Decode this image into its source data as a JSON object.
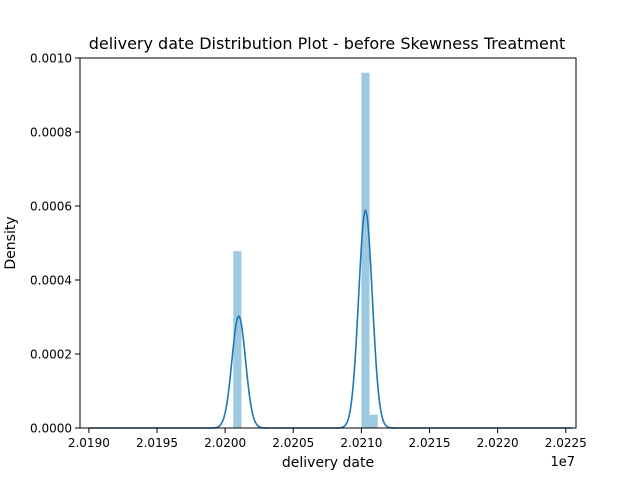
{
  "chart_data": {
    "type": "bar",
    "title": "delivery date Distribution Plot - before Skewness Treatment",
    "xlabel": "delivery date",
    "ylabel": "Density",
    "x_offset_label": "1e7",
    "xlim": [
      20189350.0,
      20225750.0
    ],
    "ylim": [
      0,
      0.001
    ],
    "x_ticks": [
      20190000.0,
      20195000.0,
      20200000.0,
      20205000.0,
      20210000.0,
      20215000.0,
      20220000.0,
      20225000.0
    ],
    "x_tick_labels": [
      "2.0190",
      "2.0195",
      "2.0200",
      "2.0205",
      "2.0210",
      "2.0215",
      "2.0220",
      "2.0225"
    ],
    "y_ticks": [
      0,
      0.0002,
      0.0004,
      0.0006,
      0.0008,
      0.001
    ],
    "y_tick_labels": [
      "0.0000",
      "0.0002",
      "0.0004",
      "0.0006",
      "0.0008",
      "0.0010"
    ],
    "histogram": {
      "color": "#9ecae1",
      "bins": [
        {
          "x0": 20200600.0,
          "x1": 20201200.0,
          "density": 0.000478
        },
        {
          "x0": 20210000.0,
          "x1": 20210600.0,
          "density": 0.00096
        },
        {
          "x0": 20210600.0,
          "x1": 20211200.0,
          "density": 3.6e-05
        }
      ]
    },
    "kde": {
      "color": "#1f77b4",
      "x_min": 20190000.0,
      "x_max": 20225500.0,
      "components": [
        {
          "mean": 20201000.0,
          "sd": 500,
          "peak": 0.000302
        },
        {
          "mean": 20210300.0,
          "sd": 500,
          "peak": 0.000588
        }
      ]
    },
    "grid": false,
    "legend": "none"
  }
}
